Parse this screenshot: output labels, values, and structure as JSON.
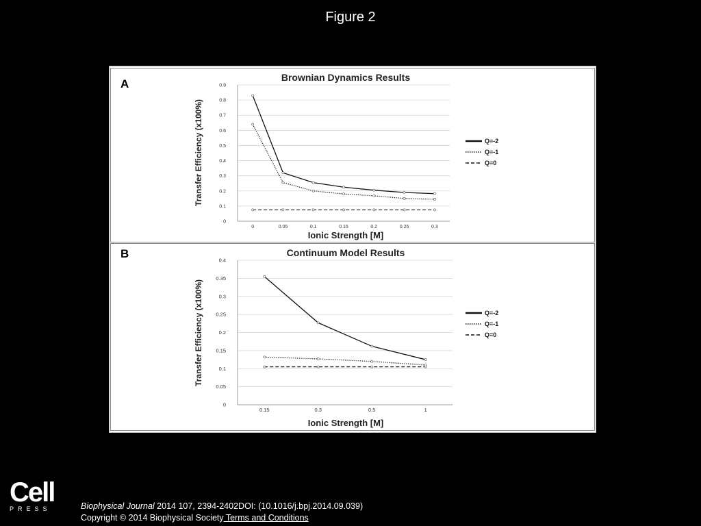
{
  "slide": {
    "title": "Figure 2"
  },
  "footer": {
    "journal": "Biophysical Journal",
    "citation": " 2014 107, 2394-2402DOI: (10.1016/j.bpj.2014.09.039)",
    "copyright": "Copyright © 2014 Biophysical Society",
    "link": " Terms and Conditions"
  },
  "logo": {
    "word": "Cell",
    "press": "PRESS"
  },
  "chart_data": [
    {
      "panel_label": "A",
      "type": "line",
      "title": "Brownian Dynamics Results",
      "xlabel": "Ionic Strength [M]",
      "ylabel": "Transfer Efficiency (x100%)",
      "categories": [
        "0",
        "0.05",
        "0.1",
        "0.15",
        "0.2",
        "0.25",
        "0.3"
      ],
      "ylim": [
        0,
        0.9
      ],
      "yticks": [
        "0",
        "0.1",
        "0.2",
        "0.3",
        "0.4",
        "0.5",
        "0.6",
        "0.7",
        "0.8",
        "0.9"
      ],
      "grid": true,
      "legend": "right",
      "series": [
        {
          "name": "Q=-2",
          "style": "solid",
          "values": [
            0.83,
            0.32,
            0.255,
            0.225,
            0.205,
            0.19,
            0.182
          ]
        },
        {
          "name": "Q=-1",
          "style": "dotted",
          "values": [
            0.64,
            0.255,
            0.2,
            0.18,
            0.168,
            0.15,
            0.145
          ]
        },
        {
          "name": "Q=0",
          "style": "dashed",
          "values": [
            0.075,
            0.075,
            0.075,
            0.075,
            0.075,
            0.075,
            0.075
          ]
        }
      ]
    },
    {
      "panel_label": "B",
      "type": "line",
      "title": "Continuum Model Results",
      "xlabel": "Ionic Strength [M]",
      "ylabel": "Transfer Efficiency (x100%)",
      "categories": [
        "0.15",
        "0.3",
        "0.5",
        "1"
      ],
      "ylim": [
        0,
        0.4
      ],
      "yticks": [
        "0",
        "0.05",
        "0.1",
        "0.15",
        "0.2",
        "0.25",
        "0.3",
        "0.35",
        "0.4"
      ],
      "grid": true,
      "legend": "right",
      "series": [
        {
          "name": "Q=-2",
          "style": "solid",
          "values": [
            0.355,
            0.227,
            0.162,
            0.125
          ]
        },
        {
          "name": "Q=-1",
          "style": "dotted",
          "values": [
            0.132,
            0.127,
            0.12,
            0.11
          ]
        },
        {
          "name": "Q=0",
          "style": "dashed",
          "values": [
            0.105,
            0.105,
            0.105,
            0.105
          ]
        }
      ]
    }
  ]
}
